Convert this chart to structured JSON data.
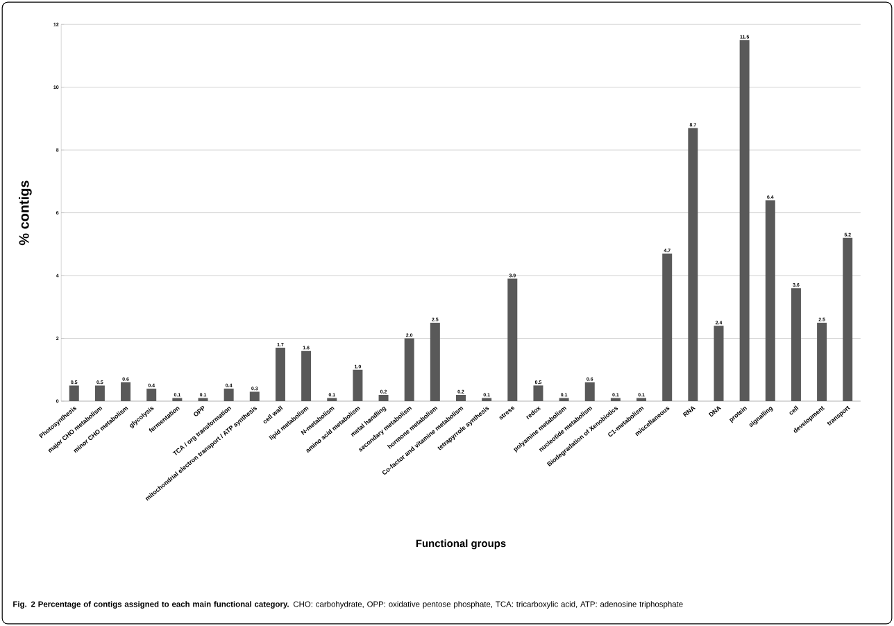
{
  "chart_data": {
    "type": "bar",
    "xlabel": "Functional groups",
    "ylabel": "% contigs",
    "categories": [
      "Photosynthesis",
      "major CHO metabolism",
      "minor CHO metabolism",
      "glycolysis",
      "fermentation",
      "OPP",
      "TCA / org transformation",
      "mitochondrial electron transport / ATP synthesis",
      "cell wall",
      "lipid metabolism",
      "N-metabolism",
      "amino acid metabolism",
      "metal handling",
      "secondary metabolism",
      "hormone metabolism",
      "Co-factor and vitamine metabolism",
      "tetrapyrrole synthesis",
      "stress",
      "redox",
      "polyamine metabolism",
      "nucleotide metabolism",
      "Biodegradation of Xenobiotics",
      "C1-metabolism",
      "miscellaneous",
      "RNA",
      "DNA",
      "protein",
      "signalling",
      "cell",
      "development",
      "transport"
    ],
    "values": [
      0.5,
      0.5,
      0.6,
      0.4,
      0.1,
      0.1,
      0.4,
      0.3,
      1.7,
      1.6,
      0.1,
      1.0,
      0.2,
      2.0,
      2.5,
      0.2,
      0.1,
      3.9,
      0.5,
      0.1,
      0.6,
      0.1,
      0.1,
      4.7,
      8.7,
      2.4,
      11.5,
      6.4,
      3.6,
      2.5,
      5.2
    ],
    "value_labels": [
      "0.5",
      "0.5",
      "0.6",
      "0.4",
      "0.1",
      "0.1",
      "0.4",
      "0.3",
      "1.7",
      "1.6",
      "0.1",
      "1.0",
      "0.2",
      "2.0",
      "2.5",
      "0.2",
      "0.1",
      "3.9",
      "0.5",
      "0.1",
      "0.6",
      "0.1",
      "0.1",
      "4.7",
      "8.7",
      "2.4",
      "11.5",
      "6.4",
      "3.6",
      "2.5",
      "5.2"
    ],
    "color": "#595959",
    "ylim": [
      0,
      12
    ],
    "yticks": [
      0,
      2,
      4,
      6,
      8,
      10,
      12
    ],
    "grid": "y",
    "annotations": [
      "**Fig. 2 Percentage of contigs assigned to each main functional category.** CHO: carbohydrate, OPP: oxidative pentose phosphate, TCA: tricarboxylic acid, ATP: adenosine triphosphate"
    ]
  }
}
